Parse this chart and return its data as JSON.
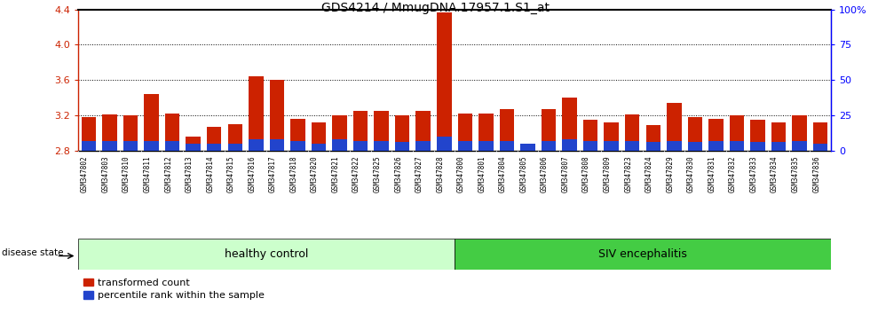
{
  "title": "GDS4214 / MmugDNA.17957.1.S1_at",
  "samples": [
    "GSM347802",
    "GSM347803",
    "GSM347810",
    "GSM347811",
    "GSM347812",
    "GSM347813",
    "GSM347814",
    "GSM347815",
    "GSM347816",
    "GSM347817",
    "GSM347818",
    "GSM347820",
    "GSM347821",
    "GSM347822",
    "GSM347825",
    "GSM347826",
    "GSM347827",
    "GSM347828",
    "GSM347800",
    "GSM347801",
    "GSM347804",
    "GSM347805",
    "GSM347806",
    "GSM347807",
    "GSM347808",
    "GSM347809",
    "GSM347823",
    "GSM347824",
    "GSM347829",
    "GSM347830",
    "GSM347831",
    "GSM347832",
    "GSM347833",
    "GSM347834",
    "GSM347835",
    "GSM347836"
  ],
  "red_values": [
    3.18,
    3.21,
    3.2,
    3.44,
    3.22,
    2.96,
    3.07,
    3.1,
    3.64,
    3.6,
    3.16,
    3.12,
    3.2,
    3.25,
    3.25,
    3.2,
    3.25,
    4.37,
    3.22,
    3.22,
    3.27,
    2.88,
    3.27,
    3.4,
    3.15,
    3.12,
    3.21,
    3.09,
    3.34,
    3.18,
    3.16,
    3.2,
    3.15,
    3.12,
    3.2,
    3.12
  ],
  "blue_values": [
    7,
    7,
    7,
    7,
    7,
    5,
    5,
    5,
    8,
    8,
    7,
    5,
    8,
    7,
    7,
    6,
    7,
    10,
    7,
    7,
    7,
    5,
    7,
    8,
    7,
    7,
    7,
    6,
    7,
    6,
    7,
    7,
    6,
    6,
    7,
    5
  ],
  "healthy_count": 18,
  "siv_count": 18,
  "ylim_left": [
    2.8,
    4.4
  ],
  "yticks_left": [
    2.8,
    3.2,
    3.6,
    4.0,
    4.4
  ],
  "ylim_right": [
    0,
    100
  ],
  "yticks_right": [
    0,
    25,
    50,
    75,
    100
  ],
  "bar_color_red": "#cc2200",
  "bar_color_blue": "#2244cc",
  "healthy_color": "#ccffcc",
  "siv_color": "#44cc44",
  "xtick_bg_color": "#cccccc",
  "legend_red": "transformed count",
  "legend_blue": "percentile rank within the sample",
  "label_healthy": "healthy control",
  "label_siv": "SIV encephalitis",
  "label_disease": "disease state",
  "base": 2.8,
  "bar_width": 0.7
}
